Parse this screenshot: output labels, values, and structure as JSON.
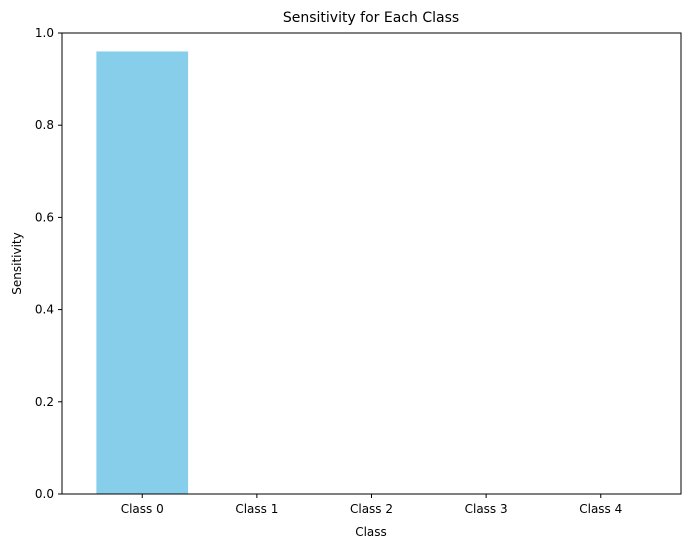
{
  "chart_data": {
    "type": "bar",
    "title": "Sensitivity for Each Class",
    "xlabel": "Class",
    "ylabel": "Sensitivity",
    "categories": [
      "Class 0",
      "Class 1",
      "Class 2",
      "Class 3",
      "Class 4"
    ],
    "values": [
      0.96,
      0.0,
      0.0,
      0.0,
      0.0
    ],
    "ylim": [
      0,
      1
    ],
    "yticks": [
      "0.0",
      "0.2",
      "0.4",
      "0.6",
      "0.8",
      "1.0"
    ],
    "bar_color": "#87ceeb",
    "grid": false,
    "legend": "none"
  }
}
